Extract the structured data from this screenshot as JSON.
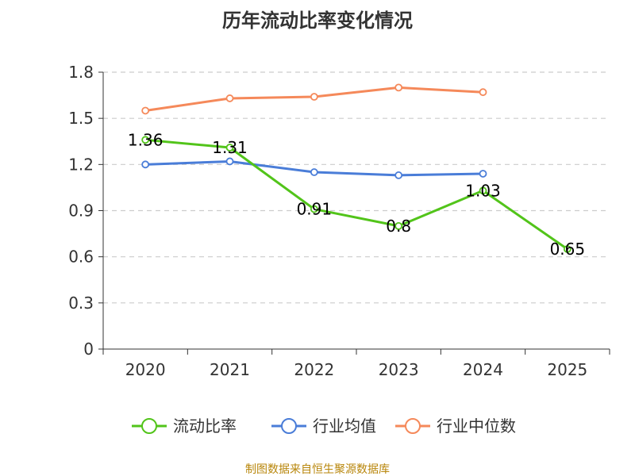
{
  "chart_data": {
    "type": "line",
    "title": "历年流动比率变化情况",
    "categories": [
      "2020",
      "2021",
      "2022",
      "2023",
      "2024",
      "2025"
    ],
    "ylim": [
      0,
      1.8
    ],
    "yticks": [
      "0",
      "0.3",
      "0.6",
      "0.9",
      "1.2",
      "1.5",
      "1.8"
    ],
    "grid": true,
    "legend_position": "bottom",
    "series": [
      {
        "name": "流动比率",
        "color": "#52c41a",
        "values": [
          1.36,
          1.31,
          0.91,
          0.8,
          1.03,
          0.65
        ],
        "labels": [
          "1.36",
          "1.31",
          "0.91",
          "0.8",
          "1.03",
          "0.65"
        ]
      },
      {
        "name": "行业均值",
        "color": "#4a7dd8",
        "values": [
          1.2,
          1.22,
          1.15,
          1.13,
          1.14,
          null
        ]
      },
      {
        "name": "行业中位数",
        "color": "#f5895a",
        "values": [
          1.55,
          1.63,
          1.64,
          1.7,
          1.67,
          null
        ]
      }
    ]
  },
  "source": "制图数据来自恒生聚源数据库"
}
